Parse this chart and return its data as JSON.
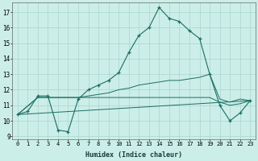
{
  "xlabel": "Humidex (Indice chaleur)",
  "bg_color": "#cceee8",
  "grid_color": "#aad4ce",
  "line_color": "#1a6e62",
  "xlim": [
    -0.5,
    23.5
  ],
  "ylim": [
    8.8,
    17.6
  ],
  "yticks": [
    9,
    10,
    11,
    12,
    13,
    14,
    15,
    16,
    17
  ],
  "xticks": [
    0,
    1,
    2,
    3,
    4,
    5,
    6,
    7,
    8,
    9,
    10,
    11,
    12,
    13,
    14,
    15,
    16,
    17,
    18,
    19,
    20,
    21,
    22,
    23
  ],
  "series": [
    {
      "x": [
        0,
        1,
        2,
        3,
        4,
        5,
        6,
        7,
        8,
        9,
        10,
        11,
        12,
        13,
        14,
        15,
        16,
        17,
        18,
        19,
        20,
        21,
        22,
        23
      ],
      "y": [
        10.4,
        10.6,
        11.6,
        11.6,
        9.4,
        9.3,
        11.4,
        12.0,
        12.3,
        12.6,
        13.1,
        14.4,
        15.5,
        16.0,
        17.3,
        16.6,
        16.4,
        15.8,
        15.3,
        13.0,
        11.0,
        10.0,
        10.5,
        11.3
      ],
      "marker": true
    },
    {
      "x": [
        0,
        2,
        3,
        4,
        5,
        6,
        7,
        8,
        9,
        10,
        11,
        12,
        13,
        14,
        15,
        16,
        17,
        18,
        19,
        20,
        21,
        22,
        23
      ],
      "y": [
        10.4,
        11.5,
        11.5,
        11.5,
        11.5,
        11.5,
        11.6,
        11.7,
        11.8,
        12.0,
        12.1,
        12.3,
        12.4,
        12.5,
        12.6,
        12.6,
        12.7,
        12.8,
        13.0,
        11.4,
        11.2,
        11.4,
        11.3
      ],
      "marker": false
    },
    {
      "x": [
        0,
        2,
        3,
        4,
        5,
        6,
        7,
        8,
        9,
        10,
        11,
        12,
        13,
        14,
        15,
        16,
        17,
        18,
        19,
        20,
        21,
        22,
        23
      ],
      "y": [
        10.4,
        11.5,
        11.5,
        11.5,
        11.5,
        11.5,
        11.5,
        11.5,
        11.5,
        11.5,
        11.5,
        11.5,
        11.5,
        11.5,
        11.5,
        11.5,
        11.5,
        11.5,
        11.5,
        11.2,
        11.0,
        11.1,
        11.3
      ],
      "marker": false
    },
    {
      "x": [
        0,
        23
      ],
      "y": [
        10.4,
        11.3
      ],
      "marker": false
    }
  ]
}
